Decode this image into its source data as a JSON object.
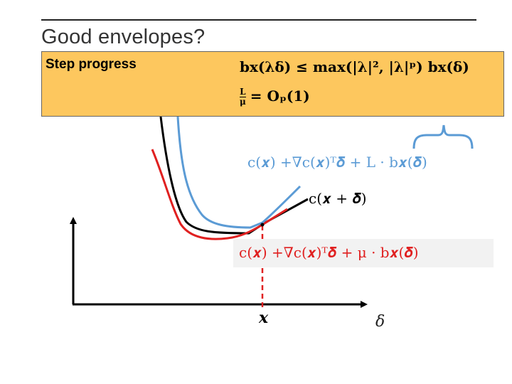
{
  "slide": {
    "title": "Good envelopes?"
  },
  "callout": {
    "label": "Step progress",
    "line1": "b𝐱(λ𝛅) ≤ max(|λ|², |λ|ᵖ) b𝐱(𝛅)",
    "line2_frac_num": "L",
    "line2_frac_den": "μ",
    "line2_rest": "= Oₚ(1)"
  },
  "equations": {
    "upper": "c(𝒙) +∇c(𝒙)ᵀ𝜹 + L · b𝒙(𝜹)",
    "function": "c(𝒙 + 𝜹)",
    "lower": "c(𝒙) +∇c(𝒙)ᵀ𝜹 + μ · b𝒙(𝜹)"
  },
  "axes": {
    "point_label": "𝒙",
    "axis_label": "δ"
  },
  "colors": {
    "callout_bg": "#fdc75e",
    "upper_curve": "#5b9bd5",
    "lower_curve": "#e02020",
    "function_curve": "#000000",
    "brace": "#5b9bd5"
  }
}
